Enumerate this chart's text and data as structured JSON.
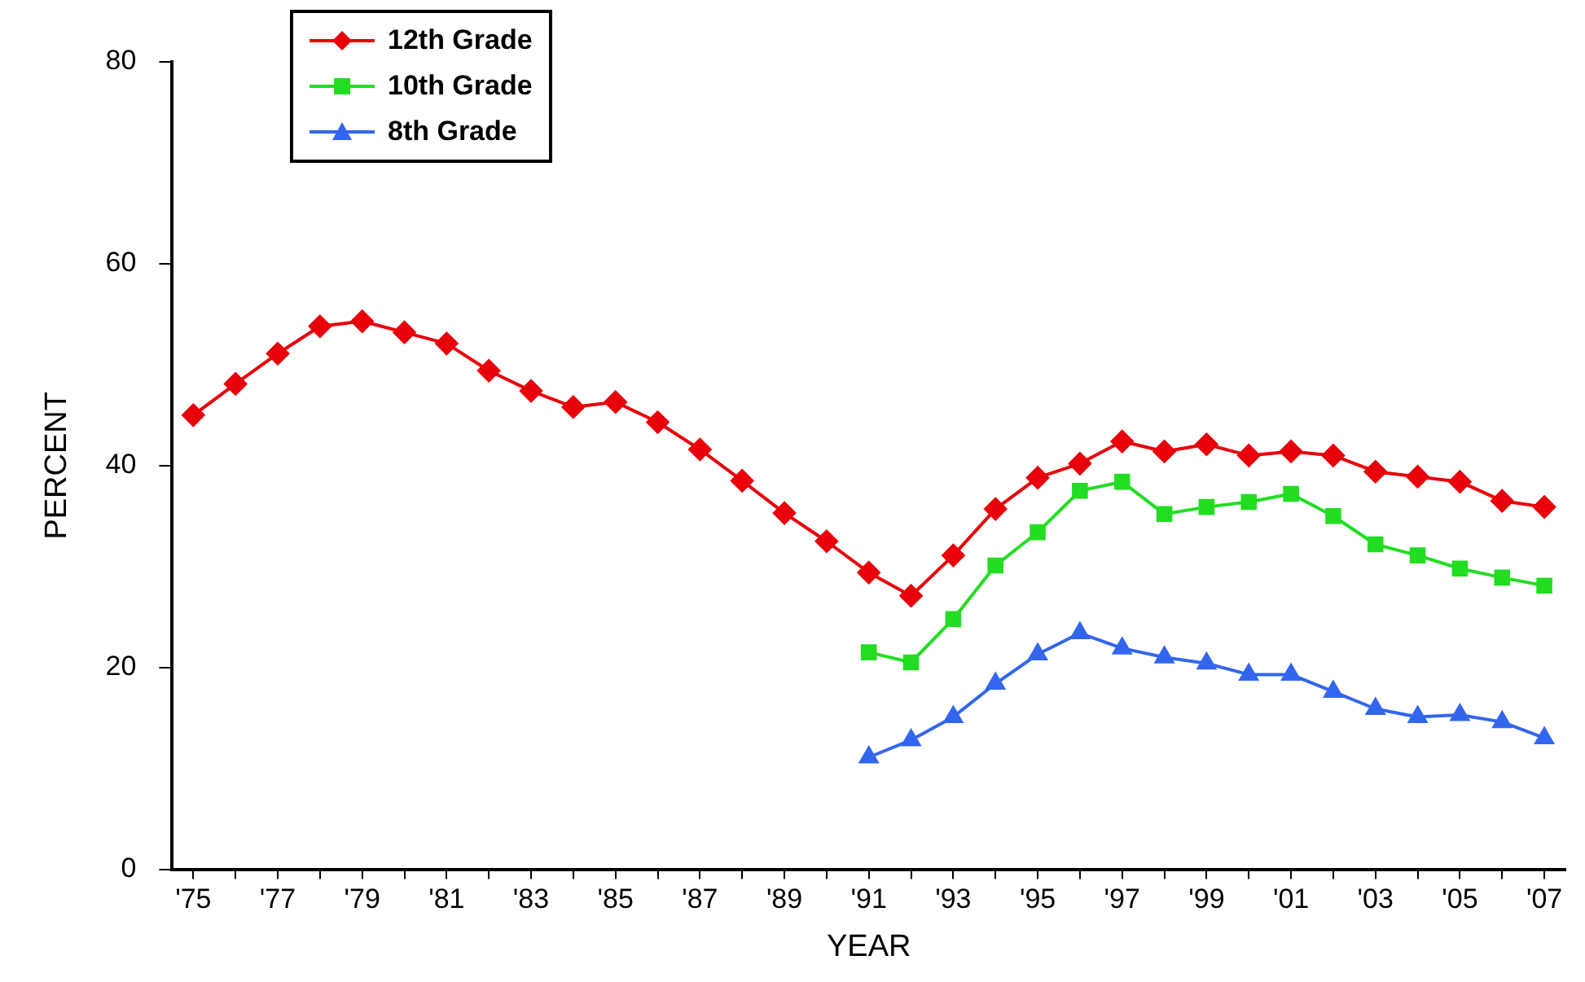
{
  "chart_data": {
    "type": "line",
    "xlabel": "YEAR",
    "ylabel": "PERCENT",
    "categories": [
      "'75",
      null,
      "'77",
      null,
      "'79",
      null,
      "'81",
      null,
      "'83",
      null,
      "'85",
      null,
      "'87",
      null,
      "'89",
      null,
      "'91",
      null,
      "'93",
      null,
      "'95",
      null,
      "'97",
      null,
      "'99",
      null,
      "'01",
      null,
      "'03",
      null,
      "'05",
      null,
      "'07"
    ],
    "series": [
      {
        "name": "12th Grade",
        "color": "#e8000b",
        "marker": "diamond",
        "values": [
          45.0,
          48.1,
          51.1,
          53.8,
          54.3,
          53.2,
          52.1,
          49.4,
          47.4,
          45.8,
          46.3,
          44.3,
          41.6,
          38.5,
          35.3,
          32.5,
          29.4,
          27.1,
          31.1,
          35.7,
          38.8,
          40.2,
          42.4,
          41.4,
          42.1,
          41.0,
          41.4,
          41.0,
          39.4,
          38.9,
          38.4,
          36.5,
          35.9
        ]
      },
      {
        "name": "10th Grade",
        "color": "#22dd22",
        "marker": "square",
        "values": [
          null,
          null,
          null,
          null,
          null,
          null,
          null,
          null,
          null,
          null,
          null,
          null,
          null,
          null,
          null,
          null,
          21.5,
          20.5,
          24.8,
          30.1,
          33.4,
          37.5,
          38.4,
          35.2,
          35.9,
          36.4,
          37.2,
          35.0,
          32.2,
          31.1,
          29.8,
          28.9,
          28.1
        ]
      },
      {
        "name": "8th Grade",
        "color": "#3366ee",
        "marker": "triangle",
        "values": [
          null,
          null,
          null,
          null,
          null,
          null,
          null,
          null,
          null,
          null,
          null,
          null,
          null,
          null,
          null,
          null,
          11.1,
          12.8,
          15.1,
          18.4,
          21.3,
          23.4,
          21.9,
          21.0,
          20.4,
          19.3,
          19.3,
          17.6,
          15.9,
          15.1,
          15.3,
          14.6,
          13.0
        ]
      }
    ],
    "ylim": [
      0,
      80
    ],
    "yticks": [
      0,
      20,
      40,
      60,
      80
    ],
    "grid": false,
    "legend": "top left",
    "line_style": "solid"
  }
}
